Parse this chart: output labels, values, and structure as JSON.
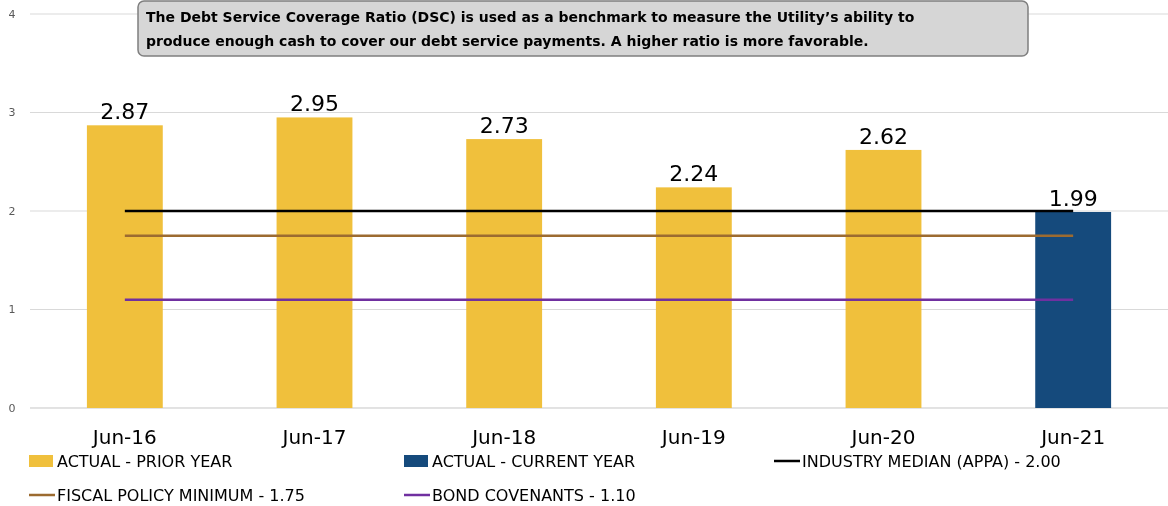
{
  "chart_data": {
    "type": "bar",
    "title": "The Debt Service Coverage Ratio (DSC) is used as a benchmark to measure the Utility’s ability to produce enough cash to cover our debt service payments.  A higher ratio is more favorable.",
    "categories": [
      "Jun-16",
      "Jun-17",
      "Jun-18",
      "Jun-19",
      "Jun-20",
      "Jun-21"
    ],
    "series": [
      {
        "name": "ACTUAL - PRIOR YEAR",
        "color": "#f0c03c",
        "values": [
          2.87,
          2.95,
          2.73,
          2.24,
          2.62,
          null
        ],
        "value_labels": [
          "2.87",
          "2.95",
          "2.73",
          "2.24",
          "2.62",
          null
        ]
      },
      {
        "name": "ACTUAL - CURRENT YEAR",
        "color": "#154a7c",
        "values": [
          null,
          null,
          null,
          null,
          null,
          1.99
        ],
        "value_labels": [
          null,
          null,
          null,
          null,
          null,
          "1.99"
        ]
      },
      {
        "name": "INDUSTRY MEDIAN (APPA) - 2.00",
        "type": "line",
        "color": "#000000",
        "values": [
          2,
          2,
          2,
          2,
          2,
          2
        ]
      },
      {
        "name": "FISCAL POLICY MINIMUM - 1.75",
        "type": "line",
        "color": "#9c6b30",
        "values": [
          1.75,
          1.75,
          1.75,
          1.75,
          1.75,
          1.75
        ]
      },
      {
        "name": "BOND COVENANTS - 1.10",
        "type": "line",
        "color": "#7030a0",
        "values": [
          1.1,
          1.1,
          1.1,
          1.1,
          1.1,
          1.1
        ]
      }
    ],
    "ylim": [
      0,
      4
    ],
    "yticks": [
      0,
      1,
      2,
      3,
      4
    ],
    "grid": "y",
    "legend": "bottom",
    "line_style": "solid"
  }
}
